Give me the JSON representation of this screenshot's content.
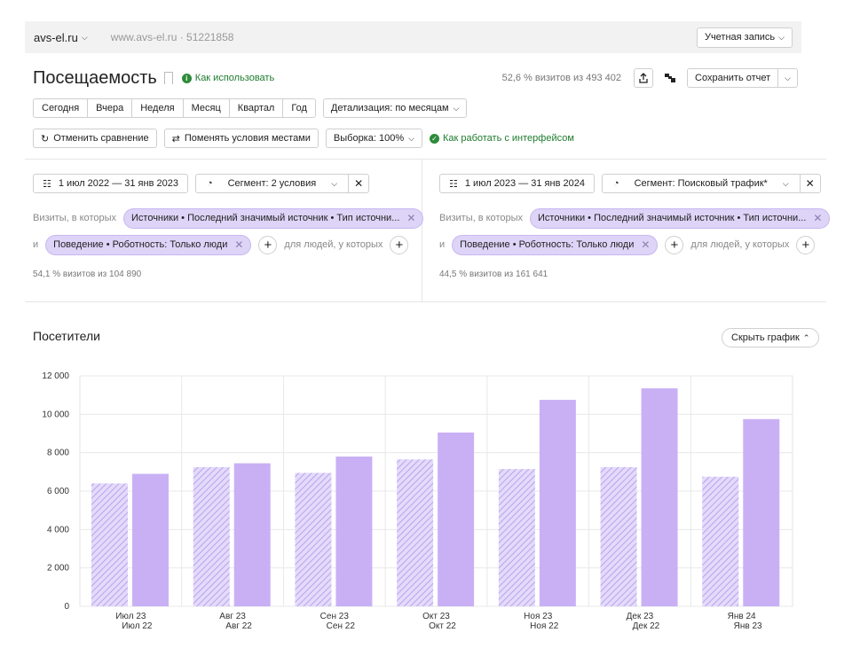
{
  "topbar": {
    "site": "avs-el.ru",
    "counter_url": "www.avs-el.ru",
    "counter_id": "· 51221858",
    "account_label": "Учетная запись"
  },
  "header": {
    "title": "Посещаемость",
    "howto_link": "Как использовать",
    "visits_info": "52,6 % визитов из 493 402",
    "save_label": "Сохранить отчет"
  },
  "periods": [
    "Сегодня",
    "Вчера",
    "Неделя",
    "Месяц",
    "Квартал",
    "Год"
  ],
  "detail_label": "Детализация: по месяцам",
  "toolbar": {
    "cancel_compare": "Отменить сравнение",
    "swap_conditions": "Поменять условия местами",
    "sample_label": "Выборка: 100%",
    "interface_link": "Как работать с интерфейсом"
  },
  "segments": [
    {
      "date_range": "1 июл 2022 — 31 янв 2023",
      "segment_label": "Сегмент: 2 условия",
      "visits_prefix": "Визиты, в которых",
      "chip1": "Источники • Последний значимый источник • Тип источни...",
      "and_label": "и",
      "chip2": "Поведение • Роботность: Только люди",
      "people_label": "для людей, у которых",
      "stat": "54,1 % визитов из 104 890"
    },
    {
      "date_range": "1 июл 2023 — 31 янв 2024",
      "segment_label": "Сегмент: Поисковый трафик*",
      "visits_prefix": "Визиты, в которых",
      "chip1": "Источники • Последний значимый источник • Тип источни...",
      "and_label": "и",
      "chip2": "Поведение • Роботность: Только люди",
      "people_label": "для людей, у которых",
      "stat": "44,5 % визитов из 161 641"
    }
  ],
  "chart_section": {
    "title": "Посетители",
    "hide_label": "Скрыть график"
  },
  "chart_data": {
    "type": "bar",
    "ylim": [
      0,
      12000
    ],
    "yticks": [
      0,
      2000,
      4000,
      6000,
      8000,
      10000,
      12000
    ],
    "ytick_labels": [
      "0",
      "2 000",
      "4 000",
      "6 000",
      "8 000",
      "10 000",
      "12 000"
    ],
    "categories": [
      "Июл 23",
      "Авг 23",
      "Сен 23",
      "Окт 23",
      "Ноя 23",
      "Дек 23",
      "Янв 24"
    ],
    "categories_compare": [
      "Июл 22",
      "Авг 22",
      "Сен 22",
      "Окт 22",
      "Ноя 22",
      "Дек 22",
      "Янв 23"
    ],
    "series": [
      {
        "values": [
          6400,
          7250,
          6950,
          7650,
          7150,
          7250,
          6750
        ],
        "color": "#c7b4f3",
        "pattern": "hatched"
      },
      {
        "values": [
          6900,
          7450,
          7800,
          9050,
          10750,
          11350,
          9750
        ],
        "color": "#c9b0f5",
        "pattern": "solid"
      }
    ],
    "grid": true
  }
}
